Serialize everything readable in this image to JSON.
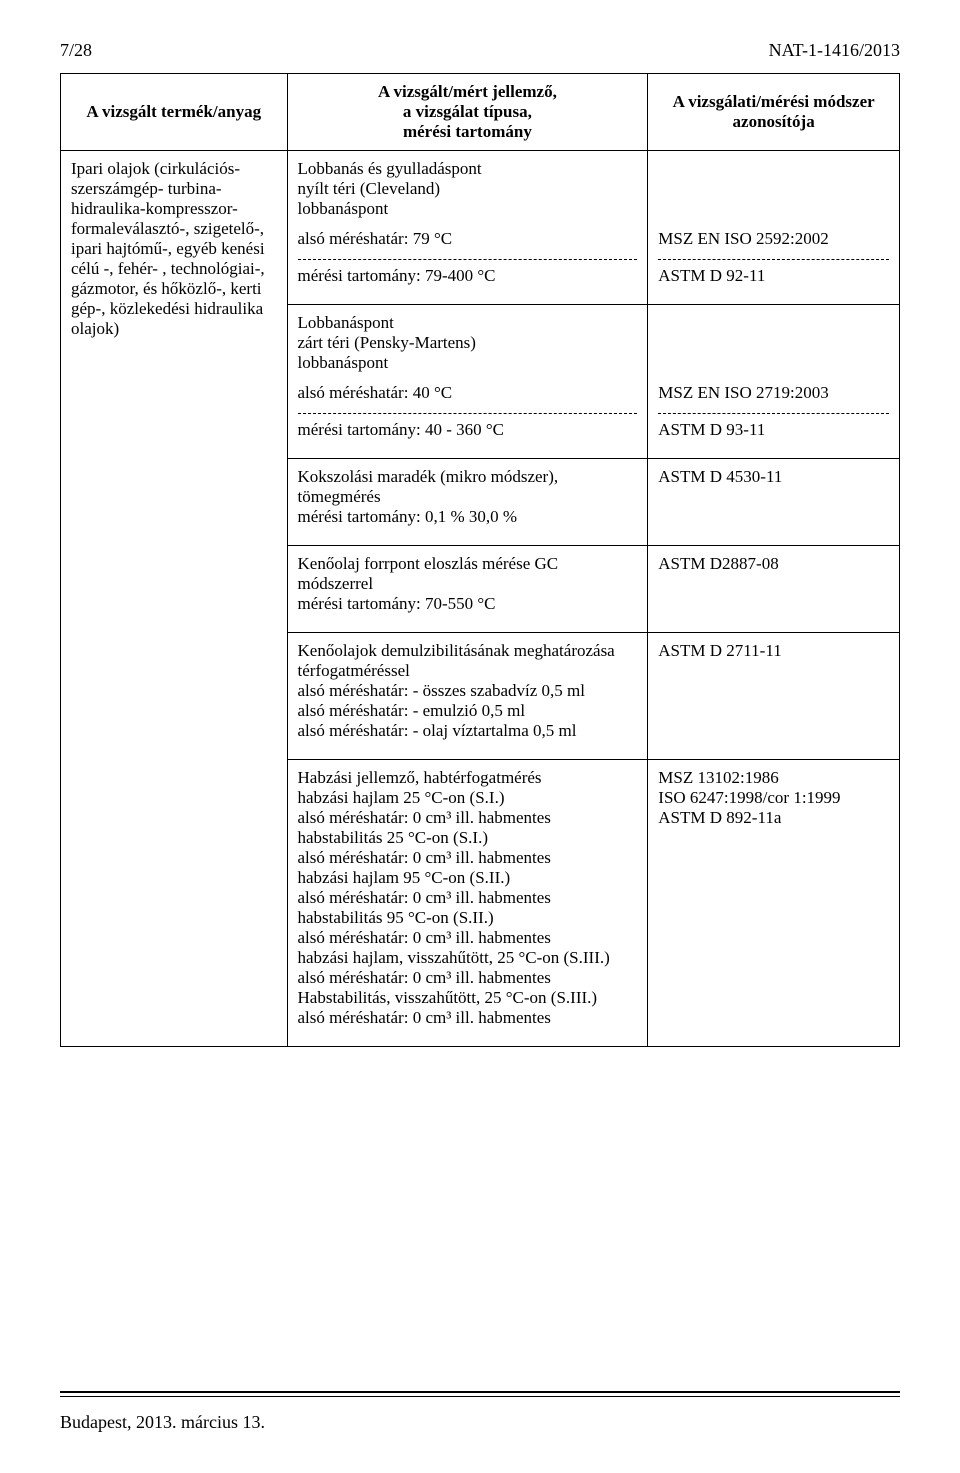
{
  "header": {
    "left": "7/28",
    "right": "NAT-1-1416/2013"
  },
  "table": {
    "headers": {
      "product": "A vizsgált termék/anyag",
      "param": "A vizsgált/mért jellemző,\na vizsgálat típusa,\nmérési tartomány",
      "method": "A vizsgálati/mérési módszer\nazonosítója"
    },
    "product_text": "Ipari olajok (cirkulációs- szerszámgép- turbina-hidraulika-kompresszor- formaleválasztó-, szigetelő-, ipari hajtómű-, egyéb kenési célú -, fehér- , technológiai-, gázmotor, és hőközlő-, kerti gép-, közlekedési hidraulika olajok)",
    "rows": [
      {
        "param_blocks": [
          {
            "text": "Lobbanás és gyulladáspont\nnyílt téri (Cleveland)\nlobbanáspont"
          },
          {
            "text": "alsó méréshatár: 79 °C",
            "method": "MSZ EN ISO 2592:2002",
            "dash_after": true
          },
          {
            "text": "mérési tartomány: 79-400 °C",
            "method": "ASTM D 92-11"
          }
        ]
      },
      {
        "param_blocks": [
          {
            "text": "Lobbanáspont\nzárt téri (Pensky-Martens)\nlobbanáspont"
          },
          {
            "text": "alsó méréshatár: 40 °C",
            "method": "MSZ EN ISO 2719:2003",
            "dash_after": true
          },
          {
            "text": "mérési tartomány: 40 - 360 °C",
            "method": "ASTM D 93-11"
          }
        ]
      },
      {
        "param_blocks": [
          {
            "text": "Kokszolási maradék (mikro módszer),\ntömegmérés\nmérési tartomány: 0,1 % 30,0 %",
            "method": "ASTM D 4530-11"
          }
        ]
      },
      {
        "param_blocks": [
          {
            "text": "Kenőolaj forrpont eloszlás mérése GC módszerrel\nmérési tartomány: 70-550 °C",
            "method": "ASTM D2887-08"
          }
        ]
      },
      {
        "param_blocks": [
          {
            "text": "Kenőolajok demulzibilitásának meghatározása térfogatméréssel\nalsó méréshatár: - összes szabadvíz 0,5 ml\nalsó méréshatár: - emulzió 0,5 ml\nalsó méréshatár: - olaj víztartalma 0,5 ml",
            "method": "ASTM D 2711-11"
          }
        ]
      },
      {
        "param_blocks": [
          {
            "text": "Habzási jellemző, habtérfogatmérés\nhabzási hajlam 25 °C-on (S.I.)\nalsó méréshatár: 0 cm³ ill. habmentes\nhabstabilitás 25 °C-on (S.I.)\nalsó méréshatár: 0 cm³ ill. habmentes\nhabzási hajlam 95 °C-on (S.II.)\nalsó méréshatár: 0 cm³ ill. habmentes\nhabstabilitás 95 °C-on (S.II.)\nalsó méréshatár: 0 cm³ ill. habmentes\nhabzási hajlam, visszahűtött, 25 °C-on (S.III.)\nalsó méréshatár: 0 cm³ ill. habmentes\nHabstabilitás, visszahűtött, 25 °C-on (S.III.)\nalsó méréshatár: 0 cm³ ill. habmentes",
            "method": "MSZ 13102:1986\nISO 6247:1998/cor 1:1999\nASTM D 892-11a"
          }
        ]
      }
    ]
  },
  "footer": "Budapest, 2013. március 13."
}
